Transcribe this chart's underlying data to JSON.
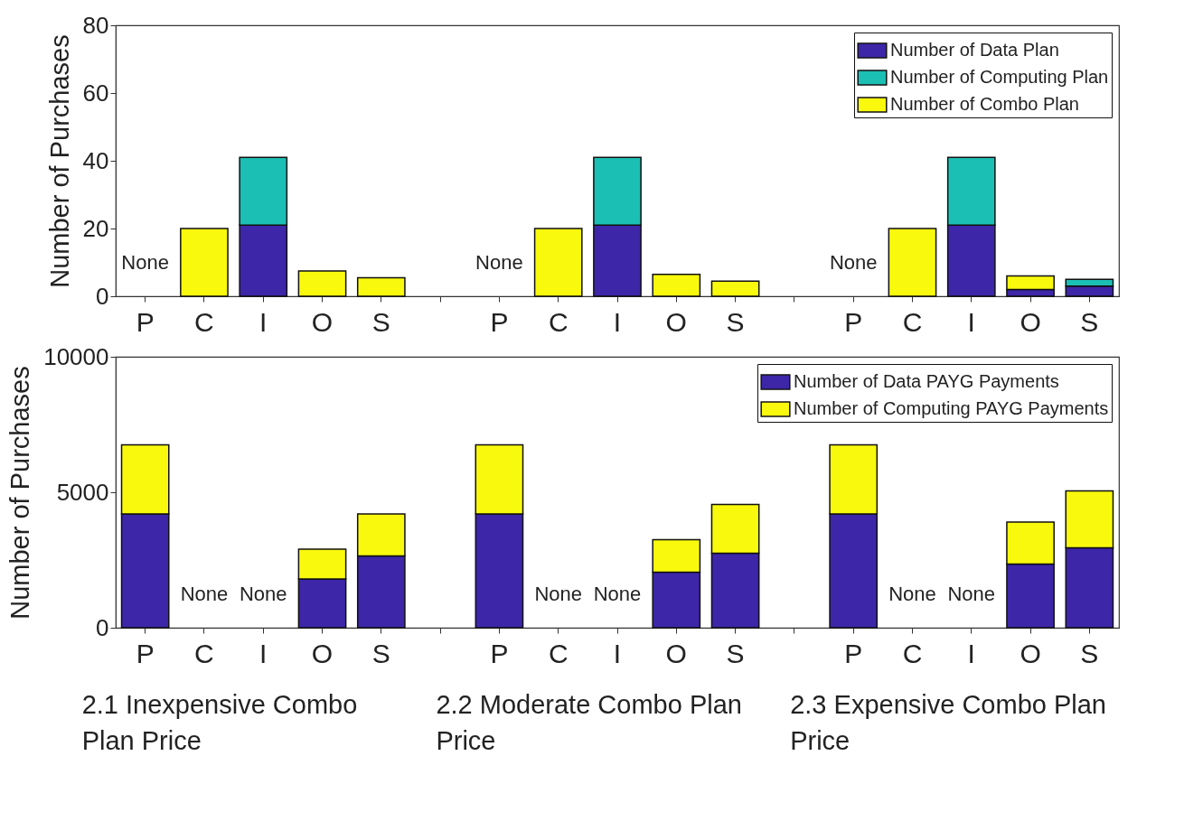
{
  "chart_data": [
    {
      "type": "bar",
      "stacked": true,
      "ylabel": "Number of Purchases",
      "categories": [
        "P",
        "C",
        "I",
        "O",
        "S",
        null,
        "P",
        "C",
        "I",
        "O",
        "S",
        null,
        "P",
        "C",
        "I",
        "O",
        "S"
      ],
      "ylim": [
        0,
        80
      ],
      "yticks": [
        0,
        20,
        40,
        60,
        80
      ],
      "grid": false,
      "legend": "top right",
      "series": [
        {
          "name": "Number of Data Plan",
          "color": "#3d26a8",
          "values": [
            null,
            null,
            21,
            null,
            null,
            null,
            null,
            null,
            21,
            null,
            null,
            null,
            null,
            null,
            21,
            2,
            3
          ],
          "value_labels": [
            "None",
            null,
            null,
            null,
            null,
            null,
            "None",
            null,
            null,
            null,
            null,
            null,
            "None",
            null,
            null,
            null,
            null
          ]
        },
        {
          "name": "Number of Computing Plan",
          "color": "#1bbfb4",
          "values": [
            null,
            null,
            20,
            null,
            null,
            null,
            null,
            null,
            20,
            null,
            null,
            null,
            null,
            null,
            20,
            null,
            2
          ]
        },
        {
          "name": "Number of Combo Plan",
          "color": "#f9f90e",
          "values": [
            null,
            20,
            null,
            7.5,
            5.5,
            null,
            null,
            20,
            null,
            6.5,
            4.5,
            null,
            null,
            20,
            null,
            4,
            null
          ]
        }
      ]
    },
    {
      "type": "bar",
      "stacked": true,
      "ylabel": "Number of Purchases",
      "categories": [
        "P",
        "C",
        "I",
        "O",
        "S",
        null,
        "P",
        "C",
        "I",
        "O",
        "S",
        null,
        "P",
        "C",
        "I",
        "O",
        "S"
      ],
      "ylim": [
        0,
        10000
      ],
      "yticks": [
        0,
        5000,
        10000
      ],
      "grid": false,
      "legend": "top right",
      "annotations": [
        "2.1 Inexpensive Combo Plan Price",
        "2.2 Moderate Combo Plan Price",
        "2.3 Expensive Combo Plan Price"
      ],
      "series": [
        {
          "name": "Number of Data PAYG Payments",
          "color": "#3d26a8",
          "values": [
            4200,
            null,
            null,
            1800,
            2650,
            null,
            4200,
            null,
            null,
            2050,
            2750,
            null,
            4200,
            null,
            null,
            2350,
            2950
          ],
          "value_labels": [
            null,
            "None",
            "None",
            null,
            null,
            null,
            null,
            "None",
            "None",
            null,
            null,
            null,
            null,
            "None",
            "None",
            null,
            null
          ]
        },
        {
          "name": "Number of Computing PAYG Payments",
          "color": "#f9f90e",
          "values": [
            2550,
            null,
            null,
            1100,
            1550,
            null,
            2550,
            null,
            null,
            1200,
            1800,
            null,
            2550,
            null,
            null,
            1550,
            2100
          ]
        }
      ]
    }
  ]
}
